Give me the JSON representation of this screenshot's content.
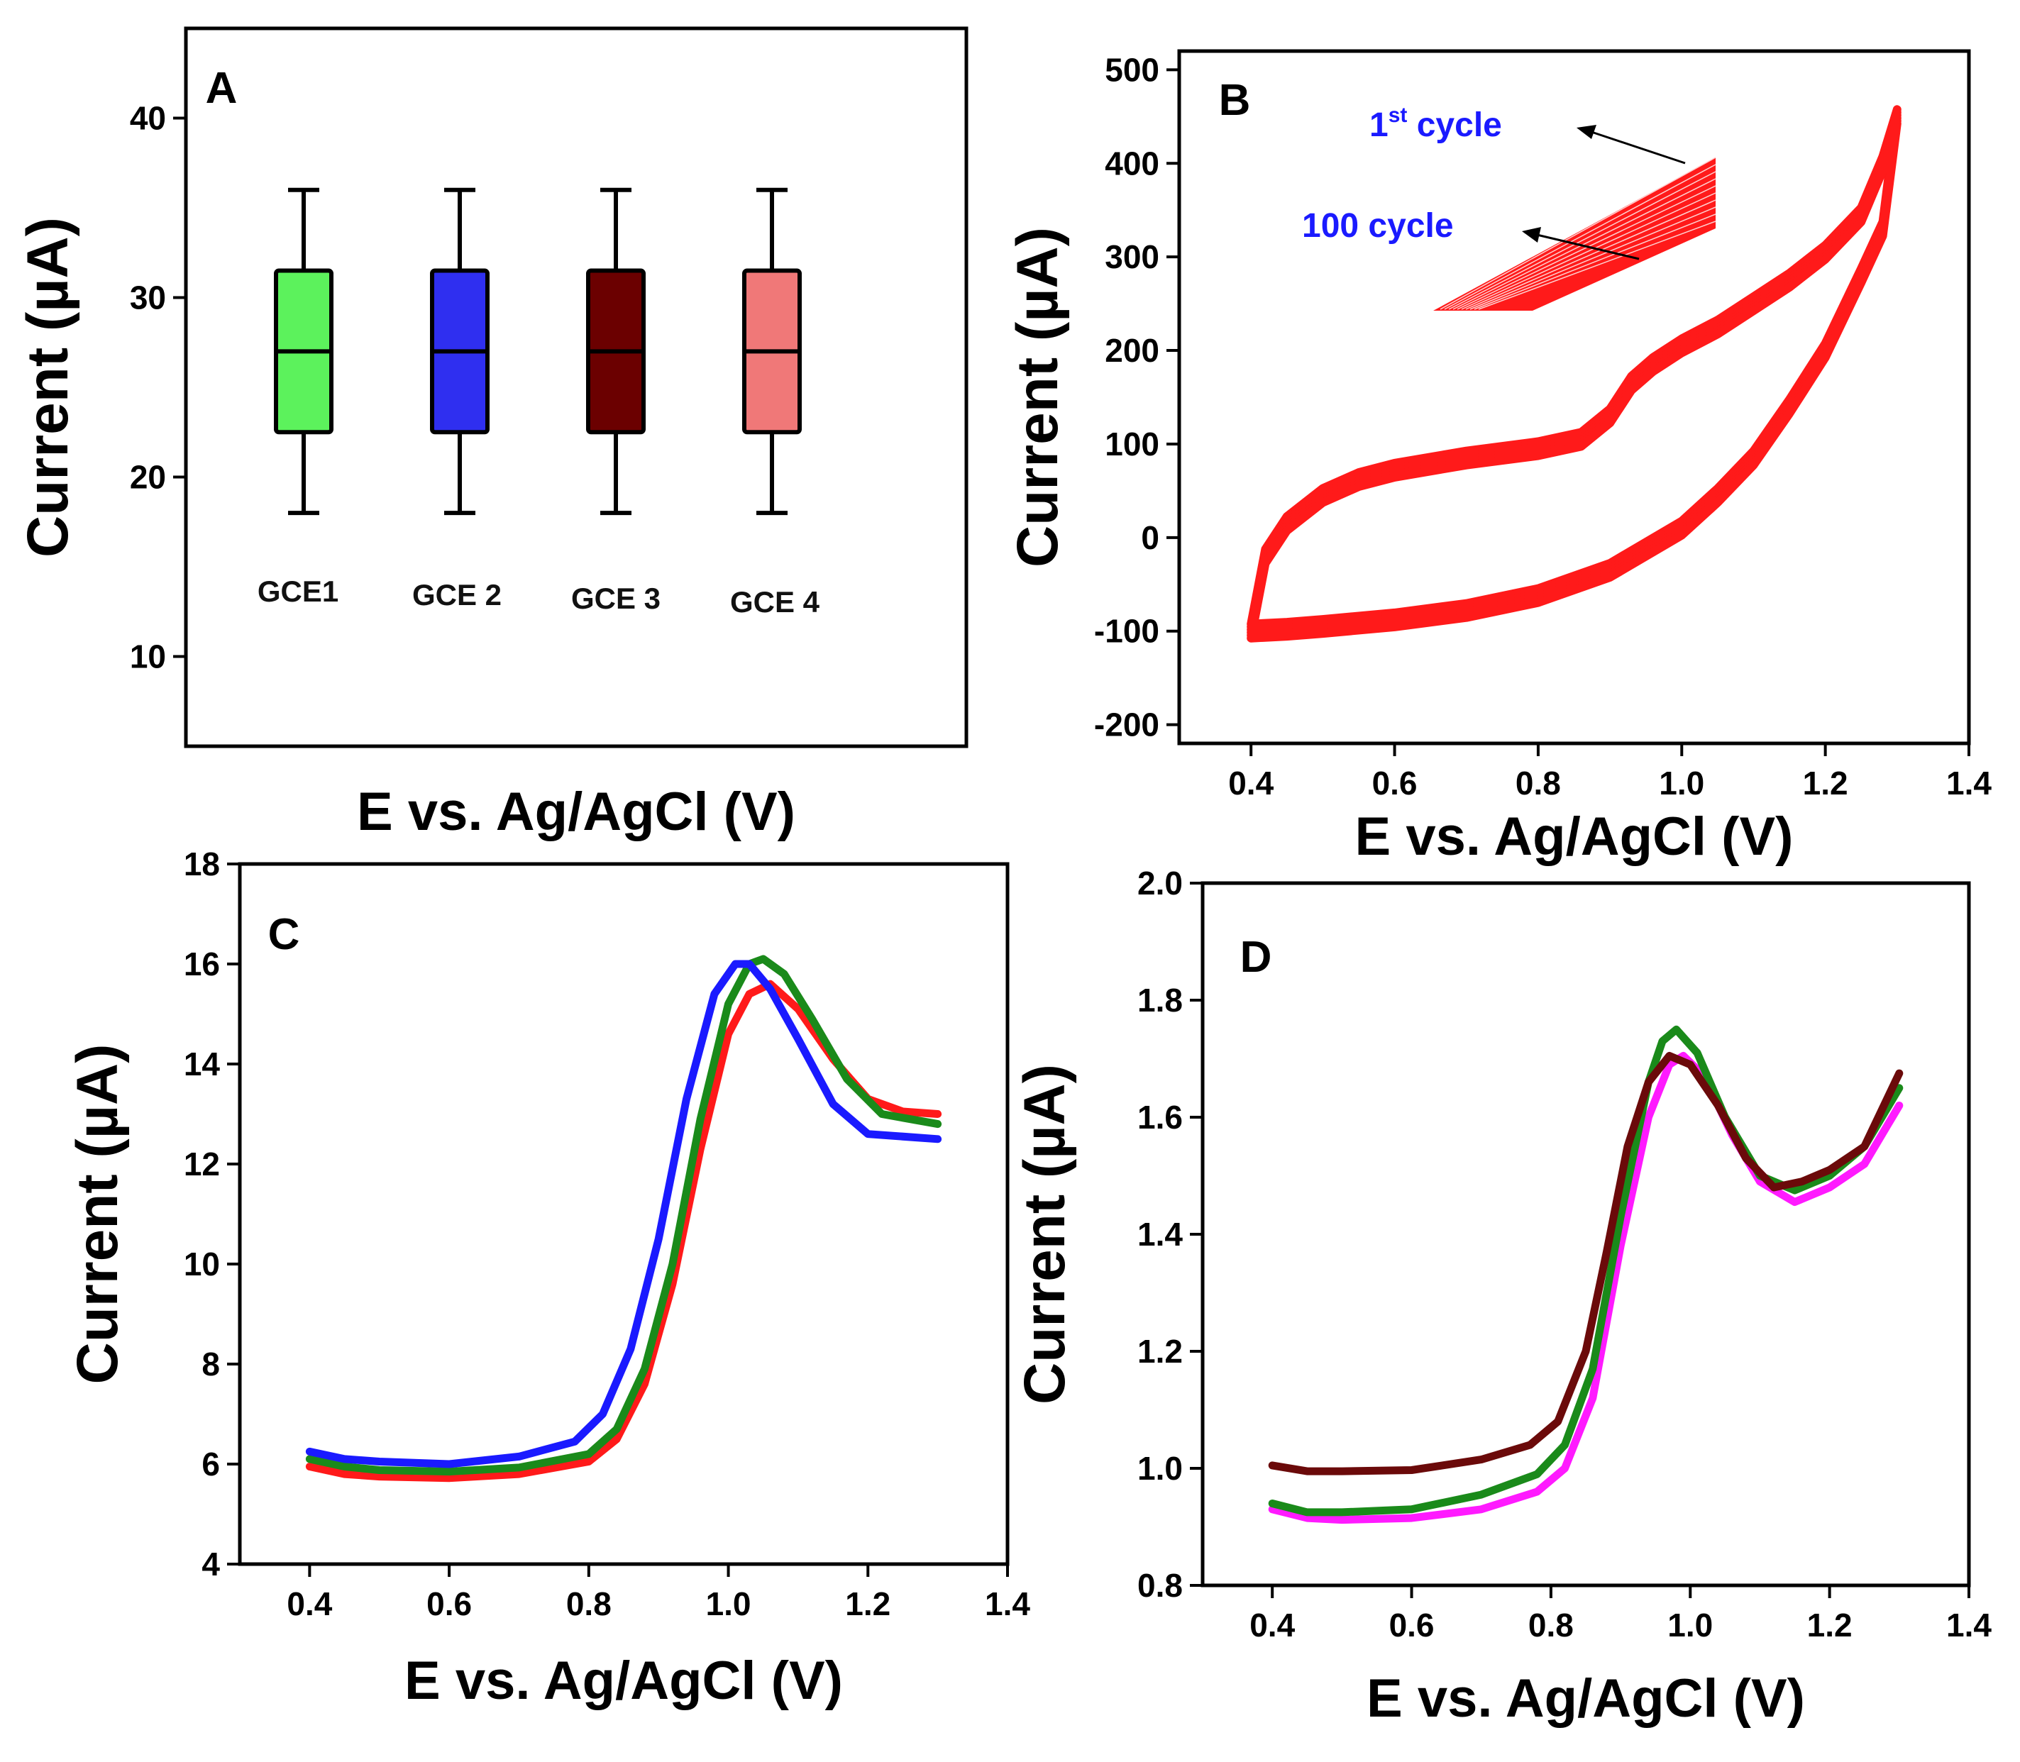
{
  "figure": {
    "panels": [
      "A",
      "B",
      "C",
      "D"
    ]
  },
  "chart_data": [
    {
      "id": "A",
      "type": "box",
      "panel_label": "A",
      "ylabel": "Current (µA)",
      "xlabel": "E vs. Ag/AgCl (V)",
      "ylim": [
        5,
        45
      ],
      "yticks": [
        10,
        20,
        30,
        40
      ],
      "categories": [
        "GCE1",
        "GCE 2",
        "GCE 3",
        "GCE 4"
      ],
      "boxes": [
        {
          "name": "GCE1",
          "min": 18,
          "q1": 22.5,
          "median": 27,
          "q3": 31.5,
          "max": 36,
          "color": "#5cf25c"
        },
        {
          "name": "GCE 2",
          "min": 18,
          "q1": 22.5,
          "median": 27,
          "q3": 31.5,
          "max": 36,
          "color": "#2f2ff0"
        },
        {
          "name": "GCE 3",
          "min": 18,
          "q1": 22.5,
          "median": 27,
          "q3": 31.5,
          "max": 36,
          "color": "#6b0000"
        },
        {
          "name": "GCE 4",
          "min": 18,
          "q1": 22.5,
          "median": 27,
          "q3": 31.5,
          "max": 36,
          "color": "#f07878"
        }
      ]
    },
    {
      "id": "B",
      "type": "line",
      "panel_label": "B",
      "ylabel": "Current (µA)",
      "xlabel": "E vs. Ag/AgCl (V)",
      "xlim": [
        0.3,
        1.4
      ],
      "ylim": [
        -220,
        520
      ],
      "xticks": [
        0.4,
        0.6,
        0.8,
        1.0,
        1.2,
        1.4
      ],
      "yticks": [
        -200,
        -100,
        0,
        100,
        200,
        300,
        400,
        500
      ],
      "annotations": {
        "first_cycle": "1",
        "first_cycle_sup": "st",
        "first_cycle_rest": " cycle",
        "last_cycle": "100 cycle"
      },
      "color": "#ff1a1a",
      "series": [
        {
          "name": "forward",
          "x": [
            0.4,
            0.42,
            0.45,
            0.5,
            0.55,
            0.6,
            0.7,
            0.8,
            0.86,
            0.9,
            0.93,
            0.96,
            1.0,
            1.05,
            1.1,
            1.15,
            1.2,
            1.25,
            1.28,
            1.3
          ],
          "y": [
            -100,
            -20,
            15,
            45,
            62,
            72,
            85,
            95,
            105,
            130,
            165,
            185,
            205,
            225,
            250,
            275,
            305,
            345,
            400,
            450
          ]
        },
        {
          "name": "reverse",
          "x": [
            1.3,
            1.28,
            1.25,
            1.2,
            1.15,
            1.1,
            1.05,
            1.0,
            0.9,
            0.8,
            0.7,
            0.6,
            0.5,
            0.45,
            0.4
          ],
          "y": [
            390,
            330,
            280,
            200,
            140,
            85,
            45,
            10,
            -35,
            -62,
            -78,
            -88,
            -95,
            -98,
            -100
          ]
        }
      ]
    },
    {
      "id": "C",
      "type": "line",
      "panel_label": "C",
      "ylabel": "Current (µA)",
      "xlabel": "E vs. Ag/AgCl (V)",
      "xlim": [
        0.3,
        1.4
      ],
      "ylim": [
        4,
        18
      ],
      "xticks": [
        0.4,
        0.6,
        0.8,
        1.0,
        1.2,
        1.4
      ],
      "yticks": [
        4,
        6,
        8,
        10,
        12,
        14,
        16,
        18
      ],
      "series": [
        {
          "name": "red",
          "color": "#ff1a1a",
          "x": [
            0.4,
            0.45,
            0.5,
            0.6,
            0.7,
            0.8,
            0.84,
            0.88,
            0.92,
            0.96,
            1.0,
            1.03,
            1.06,
            1.1,
            1.15,
            1.2,
            1.25,
            1.3
          ],
          "y": [
            5.95,
            5.8,
            5.75,
            5.72,
            5.8,
            6.05,
            6.5,
            7.6,
            9.6,
            12.3,
            14.6,
            15.4,
            15.6,
            15.1,
            14.1,
            13.3,
            13.05,
            13.0
          ]
        },
        {
          "name": "green",
          "color": "#1a8a1a",
          "x": [
            0.4,
            0.45,
            0.5,
            0.6,
            0.7,
            0.8,
            0.84,
            0.88,
            0.92,
            0.96,
            1.0,
            1.03,
            1.05,
            1.08,
            1.12,
            1.17,
            1.22,
            1.3
          ],
          "y": [
            6.1,
            5.95,
            5.88,
            5.85,
            5.93,
            6.2,
            6.7,
            7.9,
            10.0,
            12.9,
            15.2,
            16.0,
            16.1,
            15.8,
            14.9,
            13.7,
            13.0,
            12.8
          ]
        },
        {
          "name": "blue",
          "color": "#1a1aff",
          "x": [
            0.4,
            0.45,
            0.5,
            0.6,
            0.7,
            0.78,
            0.82,
            0.86,
            0.9,
            0.94,
            0.98,
            1.01,
            1.03,
            1.06,
            1.1,
            1.15,
            1.2,
            1.3
          ],
          "y": [
            6.25,
            6.1,
            6.05,
            6.0,
            6.15,
            6.45,
            7.0,
            8.3,
            10.5,
            13.3,
            15.4,
            16.0,
            16.0,
            15.5,
            14.5,
            13.2,
            12.6,
            12.5
          ]
        }
      ]
    },
    {
      "id": "D",
      "type": "line",
      "panel_label": "D",
      "ylabel": "Current (µA)",
      "xlabel": "E vs. Ag/AgCl (V)",
      "xlim": [
        0.3,
        1.4
      ],
      "ylim": [
        0.8,
        2.0
      ],
      "xticks": [
        0.4,
        0.6,
        0.8,
        1.0,
        1.2,
        1.4
      ],
      "yticks": [
        0.8,
        1.0,
        1.2,
        1.4,
        1.6,
        1.8,
        2.0
      ],
      "series": [
        {
          "name": "magenta",
          "color": "#ff1aff",
          "x": [
            0.4,
            0.45,
            0.5,
            0.6,
            0.7,
            0.78,
            0.82,
            0.86,
            0.9,
            0.94,
            0.97,
            0.99,
            1.02,
            1.06,
            1.1,
            1.15,
            1.2,
            1.25,
            1.3
          ],
          "y": [
            0.93,
            0.915,
            0.912,
            0.915,
            0.93,
            0.96,
            1.0,
            1.12,
            1.38,
            1.6,
            1.69,
            1.705,
            1.67,
            1.57,
            1.49,
            1.455,
            1.48,
            1.52,
            1.62
          ]
        },
        {
          "name": "green",
          "color": "#1a8a1a",
          "x": [
            0.4,
            0.45,
            0.5,
            0.6,
            0.7,
            0.78,
            0.82,
            0.86,
            0.9,
            0.94,
            0.96,
            0.98,
            1.01,
            1.05,
            1.1,
            1.15,
            1.2,
            1.25,
            1.3
          ],
          "y": [
            0.94,
            0.925,
            0.925,
            0.93,
            0.955,
            0.99,
            1.04,
            1.17,
            1.43,
            1.66,
            1.73,
            1.75,
            1.71,
            1.6,
            1.5,
            1.475,
            1.5,
            1.55,
            1.65
          ]
        },
        {
          "name": "brown",
          "color": "#6b0a0a",
          "x": [
            0.4,
            0.45,
            0.5,
            0.6,
            0.7,
            0.77,
            0.81,
            0.85,
            0.88,
            0.91,
            0.94,
            0.97,
            1.0,
            1.04,
            1.08,
            1.12,
            1.16,
            1.2,
            1.25,
            1.3
          ],
          "y": [
            1.005,
            0.995,
            0.995,
            0.997,
            1.015,
            1.04,
            1.08,
            1.2,
            1.37,
            1.55,
            1.66,
            1.705,
            1.69,
            1.62,
            1.53,
            1.48,
            1.49,
            1.51,
            1.55,
            1.675
          ]
        }
      ]
    }
  ]
}
